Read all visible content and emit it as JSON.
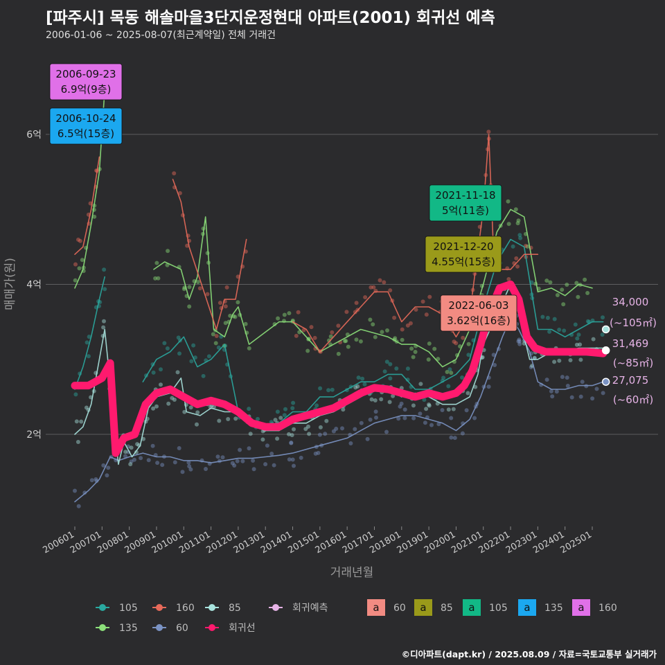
{
  "header": {
    "title": "[파주시] 목동 해솔마을3단지운정현대 아파트(2001) 회귀선 예측",
    "subtitle": "2006-01-06 ~ 2025-08-07(최근계약일) 전체 거래건"
  },
  "caption": "©디아파트(dapt.kr) / 2025.08.09 / 자료=국토교통부 실거래가",
  "chart_data": {
    "type": "line",
    "xlabel": "거래년월",
    "ylabel": "매매가(원)",
    "ylim": [
      0.7,
      7.0
    ],
    "xlim": [
      2006.0,
      2025.75
    ],
    "y_ticks": [
      {
        "value": 2,
        "label": "2억"
      },
      {
        "value": 4,
        "label": "4억"
      },
      {
        "value": 6,
        "label": "6억"
      }
    ],
    "x_ticks": [
      {
        "value": 2006.0,
        "label": "200601"
      },
      {
        "value": 2007.0,
        "label": "200701"
      },
      {
        "value": 2008.0,
        "label": "200801"
      },
      {
        "value": 2009.0,
        "label": "200901"
      },
      {
        "value": 2010.0,
        "label": "201001"
      },
      {
        "value": 2011.0,
        "label": "201101"
      },
      {
        "value": 2012.0,
        "label": "201201"
      },
      {
        "value": 2013.0,
        "label": "201301"
      },
      {
        "value": 2014.0,
        "label": "201401"
      },
      {
        "value": 2015.0,
        "label": "201501"
      },
      {
        "value": 2016.0,
        "label": "201601"
      },
      {
        "value": 2017.0,
        "label": "201701"
      },
      {
        "value": 2018.0,
        "label": "201801"
      },
      {
        "value": 2019.0,
        "label": "201901"
      },
      {
        "value": 2020.0,
        "label": "202001"
      },
      {
        "value": 2021.0,
        "label": "202101"
      },
      {
        "value": 2022.0,
        "label": "202201"
      },
      {
        "value": 2023.0,
        "label": "202301"
      },
      {
        "value": 2024.0,
        "label": "202401"
      },
      {
        "value": 2025.0,
        "label": "202501"
      }
    ],
    "series": [
      {
        "name": "60",
        "color": "#7b93c4",
        "points": [
          [
            2006.0,
            1.1
          ],
          [
            2006.5,
            1.25
          ],
          [
            2006.9,
            1.4
          ],
          [
            2007.3,
            1.7
          ],
          [
            2007.6,
            1.65
          ],
          [
            2008.0,
            1.7
          ],
          [
            2008.5,
            1.75
          ],
          [
            2009.0,
            1.7
          ],
          [
            2009.5,
            1.7
          ],
          [
            2010.0,
            1.65
          ],
          [
            2010.5,
            1.65
          ],
          [
            2011.0,
            1.62
          ],
          [
            2011.5,
            1.65
          ],
          [
            2012.0,
            1.68
          ],
          [
            2012.5,
            1.68
          ],
          [
            2013.0,
            1.7
          ],
          [
            2013.5,
            1.72
          ],
          [
            2014.0,
            1.75
          ],
          [
            2014.5,
            1.8
          ],
          [
            2015.0,
            1.85
          ],
          [
            2015.5,
            1.9
          ],
          [
            2016.0,
            1.95
          ],
          [
            2016.5,
            2.05
          ],
          [
            2017.0,
            2.15
          ],
          [
            2017.5,
            2.2
          ],
          [
            2018.0,
            2.25
          ],
          [
            2018.5,
            2.25
          ],
          [
            2019.0,
            2.2
          ],
          [
            2019.5,
            2.15
          ],
          [
            2020.0,
            2.05
          ],
          [
            2020.5,
            2.2
          ],
          [
            2020.9,
            2.5
          ],
          [
            2021.3,
            2.9
          ],
          [
            2021.7,
            3.3
          ],
          [
            2022.0,
            3.55
          ],
          [
            2022.3,
            3.4
          ],
          [
            2022.7,
            3.1
          ],
          [
            2023.0,
            2.7
          ],
          [
            2023.5,
            2.6
          ],
          [
            2024.0,
            2.6
          ],
          [
            2024.5,
            2.65
          ],
          [
            2025.0,
            2.65
          ],
          [
            2025.4,
            2.7
          ]
        ]
      },
      {
        "name": "85",
        "color": "#a8e3de",
        "points": [
          [
            2006.0,
            2.0
          ],
          [
            2006.3,
            2.1
          ],
          [
            2006.6,
            2.4
          ],
          [
            2006.9,
            3.0
          ],
          [
            2007.1,
            3.4
          ],
          [
            2007.6,
            1.6
          ],
          [
            2007.8,
            1.9
          ],
          [
            2008.1,
            1.7
          ],
          [
            2008.4,
            1.85
          ],
          [
            2008.7,
            2.35
          ],
          [
            2009.0,
            2.5
          ],
          [
            2009.5,
            2.55
          ],
          [
            2009.9,
            2.75
          ],
          [
            2010.1,
            2.3
          ],
          [
            2010.6,
            2.25
          ],
          [
            2011.0,
            2.35
          ],
          [
            2011.5,
            2.3
          ],
          [
            2012.0,
            2.3
          ],
          [
            2012.5,
            2.15
          ],
          [
            2013.0,
            2.05
          ],
          [
            2013.5,
            2.05
          ],
          [
            2014.0,
            2.15
          ],
          [
            2014.5,
            2.15
          ],
          [
            2015.0,
            2.25
          ],
          [
            2015.5,
            2.3
          ],
          [
            2016.0,
            2.4
          ],
          [
            2016.5,
            2.5
          ],
          [
            2017.0,
            2.6
          ],
          [
            2017.5,
            2.6
          ],
          [
            2018.0,
            2.5
          ],
          [
            2018.5,
            2.55
          ],
          [
            2019.0,
            2.5
          ],
          [
            2019.5,
            2.4
          ],
          [
            2020.0,
            2.4
          ],
          [
            2020.5,
            2.5
          ],
          [
            2020.8,
            2.8
          ],
          [
            2021.0,
            3.2
          ],
          [
            2021.5,
            3.6
          ],
          [
            2022.0,
            4.0
          ],
          [
            2022.3,
            3.6
          ],
          [
            2022.7,
            3.0
          ],
          [
            2023.0,
            3.0
          ],
          [
            2023.5,
            3.1
          ],
          [
            2024.0,
            3.1
          ],
          [
            2024.5,
            3.15
          ],
          [
            2025.0,
            3.15
          ],
          [
            2025.4,
            3.15
          ]
        ]
      },
      {
        "name": "105",
        "color": "#2aa9a0",
        "points": [
          [
            2006.0,
            2.6
          ],
          [
            2006.3,
            2.9
          ],
          [
            2006.6,
            3.3
          ],
          [
            2006.9,
            3.8
          ],
          [
            2007.1,
            4.1
          ],
          [
            2008.5,
            2.7
          ],
          [
            2009.0,
            3.0
          ],
          [
            2009.5,
            3.1
          ],
          [
            2010.0,
            3.3
          ],
          [
            2010.5,
            2.9
          ],
          [
            2011.0,
            3.0
          ],
          [
            2011.5,
            3.2
          ],
          [
            2012.0,
            2.3
          ],
          [
            2012.5,
            2.2
          ],
          [
            2013.0,
            2.1
          ],
          [
            2013.5,
            2.15
          ],
          [
            2014.0,
            2.3
          ],
          [
            2014.5,
            2.3
          ],
          [
            2015.0,
            2.5
          ],
          [
            2015.5,
            2.5
          ],
          [
            2016.0,
            2.6
          ],
          [
            2016.5,
            2.7
          ],
          [
            2017.0,
            2.7
          ],
          [
            2017.5,
            2.8
          ],
          [
            2018.0,
            2.8
          ],
          [
            2018.5,
            2.6
          ],
          [
            2019.0,
            2.6
          ],
          [
            2019.5,
            2.7
          ],
          [
            2020.0,
            2.8
          ],
          [
            2020.5,
            3.0
          ],
          [
            2021.0,
            3.7
          ],
          [
            2021.5,
            4.3
          ],
          [
            2022.0,
            4.6
          ],
          [
            2022.5,
            4.5
          ],
          [
            2023.0,
            3.4
          ],
          [
            2023.5,
            3.4
          ],
          [
            2024.0,
            3.3
          ],
          [
            2024.5,
            3.4
          ],
          [
            2025.0,
            3.5
          ],
          [
            2025.4,
            3.5
          ]
        ]
      },
      {
        "name": "135",
        "color": "#8ce07a",
        "points": [
          [
            2006.0,
            3.95
          ],
          [
            2006.3,
            4.2
          ],
          [
            2006.6,
            4.8
          ],
          [
            2006.9,
            5.5
          ],
          [
            2007.1,
            6.6
          ],
          [
            2008.9,
            4.2
          ],
          [
            2009.3,
            4.3
          ],
          [
            2009.9,
            4.2
          ],
          [
            2010.2,
            3.8
          ],
          [
            2010.5,
            4.1
          ],
          [
            2010.8,
            4.9
          ],
          [
            2011.1,
            3.4
          ],
          [
            2011.5,
            3.3
          ],
          [
            2011.8,
            3.6
          ],
          [
            2012.0,
            3.7
          ],
          [
            2012.4,
            3.2
          ],
          [
            2013.5,
            3.5
          ],
          [
            2014.0,
            3.5
          ],
          [
            2014.5,
            3.3
          ],
          [
            2015.0,
            3.1
          ],
          [
            2015.5,
            3.2
          ],
          [
            2016.0,
            3.3
          ],
          [
            2016.5,
            3.4
          ],
          [
            2017.0,
            3.35
          ],
          [
            2017.5,
            3.3
          ],
          [
            2018.0,
            3.2
          ],
          [
            2018.5,
            3.2
          ],
          [
            2019.0,
            3.1
          ],
          [
            2019.5,
            2.9
          ],
          [
            2020.0,
            3.0
          ],
          [
            2020.5,
            3.4
          ],
          [
            2021.0,
            4.0
          ],
          [
            2021.5,
            4.7
          ],
          [
            2022.0,
            5.0
          ],
          [
            2022.5,
            4.9
          ],
          [
            2023.0,
            3.9
          ],
          [
            2023.5,
            3.95
          ],
          [
            2024.0,
            3.85
          ],
          [
            2024.5,
            4.0
          ],
          [
            2025.0,
            3.95
          ]
        ]
      },
      {
        "name": "160",
        "color": "#e86a5a",
        "points": [
          [
            2006.0,
            4.4
          ],
          [
            2006.3,
            4.5
          ],
          [
            2006.6,
            5.0
          ],
          [
            2006.9,
            5.7
          ],
          [
            2009.6,
            5.4
          ],
          [
            2009.9,
            5.1
          ],
          [
            2010.2,
            4.5
          ],
          [
            2011.2,
            3.4
          ],
          [
            2011.5,
            3.8
          ],
          [
            2011.9,
            3.8
          ],
          [
            2012.3,
            4.6
          ],
          [
            2014.0,
            3.5
          ],
          [
            2014.5,
            3.4
          ],
          [
            2015.0,
            3.1
          ],
          [
            2015.5,
            3.3
          ],
          [
            2016.0,
            3.5
          ],
          [
            2016.5,
            3.7
          ],
          [
            2017.0,
            3.9
          ],
          [
            2017.5,
            3.9
          ],
          [
            2018.0,
            3.5
          ],
          [
            2018.5,
            3.7
          ],
          [
            2019.0,
            3.7
          ],
          [
            2019.5,
            3.6
          ],
          [
            2020.0,
            3.3
          ],
          [
            2020.5,
            3.6
          ],
          [
            2021.0,
            5.0
          ],
          [
            2021.2,
            6.0
          ],
          [
            2021.4,
            4.2
          ],
          [
            2022.0,
            4.2
          ],
          [
            2022.5,
            4.4
          ],
          [
            2023.0,
            4.4
          ]
        ]
      },
      {
        "name": "회귀선",
        "color": "#ff1a6e",
        "points": [
          [
            2006.0,
            2.65
          ],
          [
            2006.5,
            2.65
          ],
          [
            2007.0,
            2.75
          ],
          [
            2007.3,
            2.95
          ],
          [
            2007.5,
            1.75
          ],
          [
            2007.8,
            1.95
          ],
          [
            2008.2,
            2.0
          ],
          [
            2008.6,
            2.4
          ],
          [
            2009.0,
            2.55
          ],
          [
            2009.5,
            2.6
          ],
          [
            2010.0,
            2.5
          ],
          [
            2010.5,
            2.4
          ],
          [
            2011.0,
            2.45
          ],
          [
            2011.5,
            2.4
          ],
          [
            2012.0,
            2.3
          ],
          [
            2012.5,
            2.15
          ],
          [
            2013.0,
            2.1
          ],
          [
            2013.5,
            2.1
          ],
          [
            2014.0,
            2.2
          ],
          [
            2014.5,
            2.25
          ],
          [
            2015.0,
            2.3
          ],
          [
            2015.5,
            2.35
          ],
          [
            2016.0,
            2.45
          ],
          [
            2016.5,
            2.55
          ],
          [
            2017.0,
            2.62
          ],
          [
            2017.5,
            2.6
          ],
          [
            2018.0,
            2.55
          ],
          [
            2018.5,
            2.5
          ],
          [
            2019.0,
            2.55
          ],
          [
            2019.5,
            2.5
          ],
          [
            2020.0,
            2.55
          ],
          [
            2020.3,
            2.65
          ],
          [
            2020.6,
            2.85
          ],
          [
            2020.9,
            3.2
          ],
          [
            2021.2,
            3.6
          ],
          [
            2021.6,
            3.95
          ],
          [
            2022.0,
            4.0
          ],
          [
            2022.3,
            3.8
          ],
          [
            2022.6,
            3.3
          ],
          [
            2022.9,
            3.15
          ],
          [
            2023.3,
            3.1
          ],
          [
            2023.8,
            3.1
          ],
          [
            2024.3,
            3.1
          ],
          [
            2024.8,
            3.1
          ],
          [
            2025.4,
            3.08
          ]
        ]
      }
    ],
    "legend": [
      {
        "name": "105",
        "color": "#2aa9a0",
        "kind": "line"
      },
      {
        "name": "160",
        "color": "#e86a5a",
        "kind": "line"
      },
      {
        "name": "85",
        "color": "#a8e3de",
        "kind": "line"
      },
      {
        "name": "회귀예측",
        "color": "#e6b3e6",
        "kind": "line"
      },
      {
        "name": "135",
        "color": "#8ce07a",
        "kind": "line"
      },
      {
        "name": "60",
        "color": "#7b93c4",
        "kind": "line"
      },
      {
        "name": "회귀선",
        "color": "#ff1a6e",
        "kind": "line"
      },
      {
        "name": "60",
        "color": "#f28b82",
        "kind": "box"
      },
      {
        "name": "85",
        "color": "#9a9a1a",
        "kind": "box"
      },
      {
        "name": "105",
        "color": "#12b886",
        "kind": "box"
      },
      {
        "name": "135",
        "color": "#1ba8f0",
        "kind": "box"
      },
      {
        "name": "160",
        "color": "#e070e8",
        "kind": "box"
      }
    ],
    "legend_box_glyph": "a",
    "annotations": [
      {
        "date": "2006-09-23",
        "price": "6.9억(9층)",
        "x": 2006.72,
        "y": 6.9,
        "color": "#e070e8"
      },
      {
        "date": "2006-10-24",
        "price": "6.5억(15층)",
        "x": 2006.8,
        "y": 6.5,
        "color": "#1ba8f0"
      },
      {
        "date": "2021-11-18",
        "price": "5억(11층)",
        "x": 2021.88,
        "y": 5.0,
        "color": "#12b886"
      },
      {
        "date": "2021-12-20",
        "price": "4.55억(15층)",
        "x": 2021.97,
        "y": 4.55,
        "color": "#9a9a1a"
      },
      {
        "date": "2022-06-03",
        "price": "3.62억(16층)",
        "x": 2022.42,
        "y": 3.62,
        "color": "#f28b82"
      }
    ],
    "end_labels": [
      {
        "value": "34,000",
        "area": "(~105㎡)",
        "y": 3.4,
        "dot": "#a8e3de"
      },
      {
        "value": "31,469",
        "area": "(~85㎡)",
        "y": 3.12,
        "dot": "#ffffff"
      },
      {
        "value": "27,075",
        "area": "(~60㎡)",
        "y": 2.7,
        "dot": "#7b93c4"
      }
    ]
  }
}
